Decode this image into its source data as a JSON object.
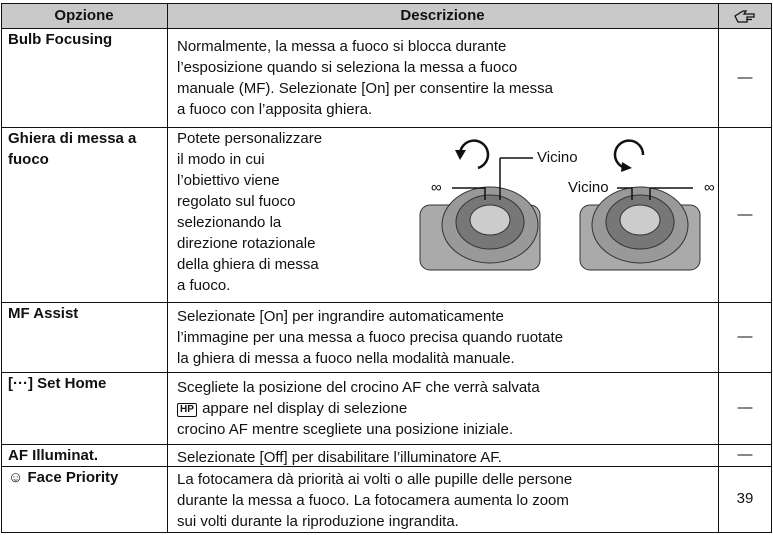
{
  "header": {
    "option": "Opzione",
    "description": "Descrizione"
  },
  "rows": [
    {
      "option": [
        "Bulb Focusing"
      ],
      "description": [
        "Normalmente, la messa a fuoco si blocca durante",
        "l’esposizione quando si seleziona la messa a fuoco",
        "manuale (MF). Selezionate [On] per consentire la messa",
        "a fuoco con l’apposita ghiera."
      ],
      "ref": "—"
    },
    {
      "option": [
        "Ghiera di messa a",
        "fuoco"
      ],
      "description": [
        "Potete personalizzare",
        "il modo in cui",
        "l’obiettivo viene",
        "regolato sul fuoco",
        "selezionando la",
        "direzione rotazionale",
        "della ghiera di messa",
        "a fuoco."
      ],
      "figure_labels": [
        "Vicino",
        "∞",
        "Vicino",
        "∞"
      ],
      "ref": "—"
    },
    {
      "option": [
        "MF Assist"
      ],
      "description": [
        "Selezionate [On] per ingrandire automaticamente",
        "l’immagine per una messa a fuoco precisa quando ruotate",
        "la ghiera di messa a fuoco nella modalità manuale."
      ],
      "ref": "—"
    },
    {
      "option": [
        "[···] Set Home"
      ],
      "description": [
        "Scegliete la posizione del crocino AF che verrà salvata",
        {
          "icon": "HP",
          "text": " appare nel display di selezione"
        },
        "crocino AF mentre scegliete una posizione iniziale."
      ],
      "ref": "—"
    },
    {
      "option": [
        "AF Illuminat."
      ],
      "description": [
        "Selezionate [Off] per disabilitare l’illuminatore AF."
      ],
      "ref": "—"
    },
    {
      "option": [
        "☺ Face Priority"
      ],
      "description": [
        "La fotocamera dà priorità ai volti o alle pupille delle persone",
        "durante la messa a fuoco. La fotocamera aumenta lo zoom",
        "sui volti durante la riproduzione ingrandita."
      ],
      "ref": "39"
    }
  ]
}
